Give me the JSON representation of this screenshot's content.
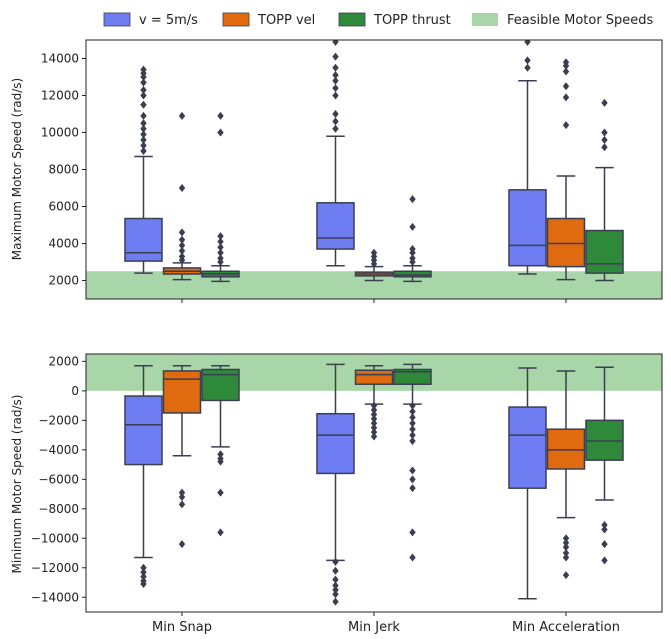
{
  "colors": {
    "v5": "#6e7ef2",
    "topp_vel": "#e06a10",
    "topp_thrust": "#2e8a3a",
    "feasible": "#a9d6a9",
    "box_edge": "#3a3f4f",
    "outlier": "#3a3f4f"
  },
  "chart_data": {
    "type": "box",
    "categories": [
      "Min Snap",
      "Min Jerk",
      "Min Acceleration"
    ],
    "legend": {
      "position": "top",
      "entries": [
        "v = 5m/s",
        "TOPP vel",
        "TOPP thrust",
        "Feasible Motor Speeds"
      ]
    },
    "series_keys": [
      "v5",
      "topp_vel",
      "topp_thrust"
    ],
    "panels": [
      {
        "id": "top",
        "ylabel": "Maximum Motor Speed (rad/s)",
        "ylim": [
          1000,
          15000
        ],
        "yticks": [
          2000,
          4000,
          6000,
          8000,
          10000,
          12000,
          14000
        ],
        "ytick_labels": [
          "2000",
          "4000",
          "6000",
          "8000",
          "10000",
          "12000",
          "14000"
        ],
        "feasible_band": [
          1000,
          2500
        ],
        "boxes": [
          [
            {
              "series": "v5",
              "min": 2400,
              "q1": 3050,
              "median": 3500,
              "q3": 5350,
              "max": 8700,
              "outliers": [
                9000,
                9300,
                9600,
                9900,
                10200,
                10500,
                10900,
                11500,
                12000,
                12300,
                12700,
                13000,
                13200,
                13400
              ]
            },
            {
              "series": "topp_vel",
              "min": 2050,
              "q1": 2350,
              "median": 2500,
              "q3": 2680,
              "max": 2950,
              "outliers": [
                3100,
                3300,
                3600,
                3900,
                4200,
                4600,
                7000,
                10900
              ]
            },
            {
              "series": "topp_thrust",
              "min": 1950,
              "q1": 2200,
              "median": 2350,
              "q3": 2500,
              "max": 2800,
              "outliers": [
                3000,
                3200,
                3500,
                3800,
                4100,
                4400,
                10000,
                10900
              ]
            }
          ],
          [
            {
              "series": "v5",
              "min": 2800,
              "q1": 3700,
              "median": 4300,
              "q3": 6200,
              "max": 9800,
              "outliers": [
                10200,
                10600,
                11000,
                12000,
                12400,
                12800,
                13100,
                13500,
                14100,
                14900
              ]
            },
            {
              "series": "topp_vel",
              "min": 2000,
              "q1": 2250,
              "median": 2350,
              "q3": 2450,
              "max": 2750,
              "outliers": [
                2900,
                3100,
                3300,
                3500
              ]
            },
            {
              "series": "topp_thrust",
              "min": 1950,
              "q1": 2200,
              "median": 2300,
              "q3": 2500,
              "max": 2800,
              "outliers": [
                3000,
                3200,
                3500,
                3700,
                4900,
                6400
              ]
            }
          ],
          [
            {
              "series": "v5",
              "min": 2350,
              "q1": 2800,
              "median": 3900,
              "q3": 6900,
              "max": 12800,
              "outliers": [
                13500,
                13900,
                14900
              ]
            },
            {
              "series": "topp_vel",
              "min": 2050,
              "q1": 2750,
              "median": 4000,
              "q3": 5350,
              "max": 7650,
              "outliers": [
                10400,
                11900,
                12500,
                13300,
                13600,
                13800
              ]
            },
            {
              "series": "topp_thrust",
              "min": 2000,
              "q1": 2400,
              "median": 2900,
              "q3": 4700,
              "max": 8100,
              "outliers": [
                9200,
                9600,
                10000,
                11600
              ]
            }
          ]
        ]
      },
      {
        "id": "bottom",
        "ylabel": "Minimum Motor Speed (rad/s)",
        "ylim": [
          -15000,
          2500
        ],
        "yticks": [
          -14000,
          -12000,
          -10000,
          -8000,
          -6000,
          -4000,
          -2000,
          0,
          2000
        ],
        "ytick_labels": [
          "−14000",
          "−12000",
          "−10000",
          "−8000",
          "−6000",
          "−4000",
          "−2000",
          "0",
          "2000"
        ],
        "feasible_band": [
          0,
          2500
        ],
        "boxes": [
          [
            {
              "series": "v5",
              "min": -11300,
              "q1": -5000,
              "median": -2300,
              "q3": -350,
              "max": 1700,
              "outliers": [
                -12000,
                -12300,
                -12600,
                -12900,
                -13100
              ]
            },
            {
              "series": "topp_vel",
              "min": -4400,
              "q1": -1500,
              "median": 800,
              "q3": 1350,
              "max": 1700,
              "outliers": [
                -6900,
                -7200,
                -7700,
                -10400
              ]
            },
            {
              "series": "topp_thrust",
              "min": -3800,
              "q1": -650,
              "median": 1100,
              "q3": 1450,
              "max": 1700,
              "outliers": [
                -4300,
                -4600,
                -4800,
                -6900,
                -9600
              ]
            }
          ],
          [
            {
              "series": "v5",
              "min": -11500,
              "q1": -5600,
              "median": -3000,
              "q3": -1550,
              "max": 1800,
              "outliers": [
                -11600,
                -12200,
                -12800,
                -13200,
                -13500,
                -13800,
                -14300
              ]
            },
            {
              "series": "topp_vel",
              "min": -900,
              "q1": 450,
              "median": 1100,
              "q3": 1400,
              "max": 1700,
              "outliers": [
                -1000,
                -1300,
                -1600,
                -1900,
                -2200,
                -2500,
                -2800,
                -3100
              ]
            },
            {
              "series": "topp_thrust",
              "min": -900,
              "q1": 450,
              "median": 1300,
              "q3": 1450,
              "max": 1800,
              "outliers": [
                -1000,
                -1400,
                -1800,
                -2200,
                -2600,
                -3000,
                -3400,
                -5400,
                -6000,
                -6600,
                -9600,
                -11300
              ]
            }
          ],
          [
            {
              "series": "v5",
              "min": -14100,
              "q1": -6600,
              "median": -3000,
              "q3": -1100,
              "max": 1550,
              "outliers": []
            },
            {
              "series": "topp_vel",
              "min": -8600,
              "q1": -5300,
              "median": -4000,
              "q3": -2600,
              "max": 1350,
              "outliers": [
                -10000,
                -10300,
                -10600,
                -11000,
                -11300,
                -12500
              ]
            },
            {
              "series": "topp_thrust",
              "min": -7400,
              "q1": -4700,
              "median": -3400,
              "q3": -2000,
              "max": 1600,
              "outliers": [
                -9100,
                -9400,
                -10400,
                -11500
              ]
            }
          ]
        ]
      }
    ]
  }
}
